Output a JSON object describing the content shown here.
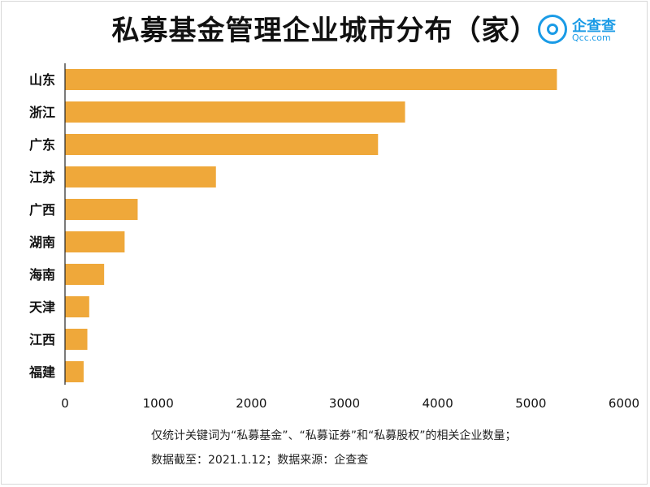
{
  "title": "私募基金管理企业城市分布（家）",
  "logo": {
    "cn": "企查查",
    "en": "Qcc.com"
  },
  "notes": [
    "仅统计关键词为“私募基金”、“私募证券”和“私募股权”的相关企业数量；",
    "数据截至：2021.1.12；数据来源：企查查"
  ],
  "colors": {
    "bar": "#EFA83A",
    "axis": "#222222"
  },
  "chart_data": {
    "type": "bar",
    "orientation": "horizontal",
    "title": "私募基金管理企业城市分布（家）",
    "categories": [
      "山东",
      "浙江",
      "广东",
      "江苏",
      "广西",
      "湖南",
      "海南",
      "天津",
      "江西",
      "福建"
    ],
    "values": [
      5280,
      3650,
      3360,
      1620,
      780,
      640,
      420,
      260,
      240,
      200
    ],
    "xlim": [
      0,
      6000
    ],
    "xticks": [
      "0",
      "1000",
      "2000",
      "3000",
      "4000",
      "5000",
      "6000"
    ],
    "grid": false,
    "legend": "none"
  }
}
